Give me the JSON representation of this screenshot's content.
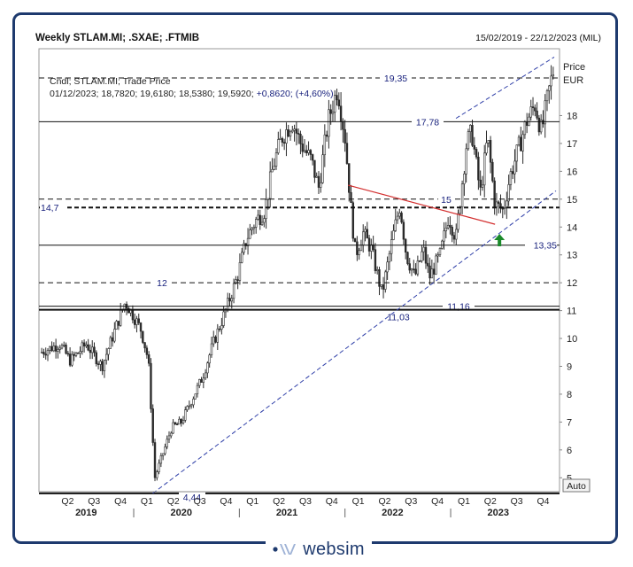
{
  "header": {
    "title": "Weekly STLAM.MI; .SXAE; .FTMIB",
    "date_range": "15/02/2019 - 22/12/2023 (MIL)"
  },
  "legend": {
    "line1": "Cndl; STLAM.MI; Trade Price",
    "line2_values": "01/12/2023; 18,7820; 19,6180; 18,5380; 19,5920;",
    "line2_change": "+0,8620; (+4,60%)"
  },
  "axis": {
    "price_label": "Price",
    "currency_label": "EUR",
    "auto_button": "Auto"
  },
  "brand": {
    "name": "websim"
  },
  "colors": {
    "candle": "#2b2b2b",
    "level_text": "#1a237e",
    "trend_dashed": "#2f3fa8",
    "resistance": "#d32f2f",
    "arrow": "#1b8a2a",
    "frame": "#1e3a6e"
  },
  "chart_data": {
    "type": "candlestick",
    "ylim": [
      4.5,
      20.4
    ],
    "y_ticks": [
      5,
      6,
      7,
      8,
      9,
      10,
      11,
      12,
      13,
      14,
      15,
      16,
      17,
      18
    ],
    "x_quarter_labels": [
      "Q2",
      "Q3",
      "Q4",
      "Q1",
      "Q2",
      "Q3",
      "Q4",
      "Q1",
      "Q2",
      "Q3",
      "Q4",
      "Q1",
      "Q2",
      "Q3",
      "Q4",
      "Q1",
      "Q2",
      "Q3",
      "Q4"
    ],
    "x_year_labels": [
      "2019",
      "2020",
      "2021",
      "2022",
      "2023"
    ],
    "horizontal_levels": [
      {
        "label": "19,35",
        "value": 19.35,
        "style": "dashed"
      },
      {
        "label": "17,78",
        "value": 17.78,
        "style": "solid"
      },
      {
        "label": "15",
        "value": 15.0,
        "style": "dashed"
      },
      {
        "label": "14,7",
        "value": 14.7,
        "style": "dashed-bold"
      },
      {
        "label": "13,35",
        "value": 13.35,
        "style": "solid"
      },
      {
        "label": "12",
        "value": 12.0,
        "style": "dashed"
      },
      {
        "label": "11,16",
        "value": 11.16,
        "style": "solid"
      },
      {
        "label": "11,03",
        "value": 11.03,
        "style": "solid-bold"
      },
      {
        "label": "4,44",
        "value": 4.44,
        "style": "solid-bold"
      }
    ],
    "trendlines": [
      {
        "type": "support",
        "from": [
          "2020-03",
          4.44
        ],
        "to": [
          "2023-12",
          20.0
        ],
        "style": "dashed"
      },
      {
        "type": "resistance",
        "from": [
          "2022-01",
          15.5
        ],
        "to": [
          "2023-05",
          14.1
        ],
        "color": "red"
      }
    ],
    "last_candle": {
      "date": "01/12/2023",
      "open": 18.782,
      "high": 19.618,
      "low": 18.538,
      "close": 19.592
    }
  }
}
